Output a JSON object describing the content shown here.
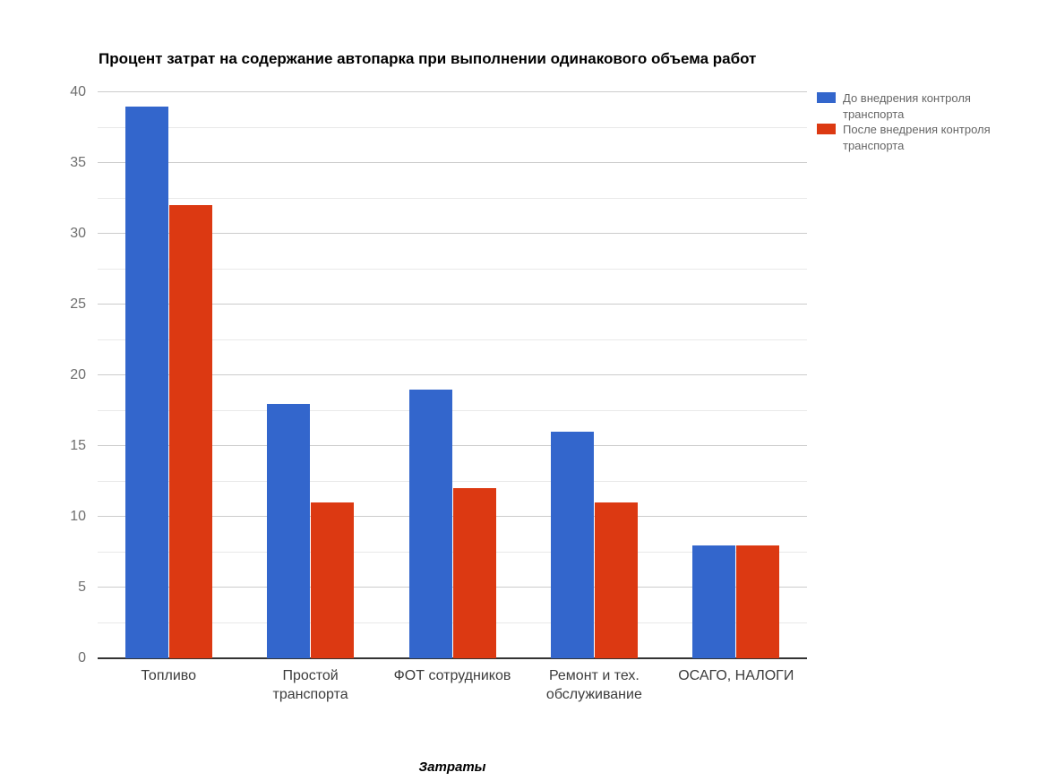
{
  "chart_data": {
    "type": "bar",
    "title": "Процент затрат на содержание автопарка при выполнении одинакового объема работ",
    "xlabel": "Затраты",
    "ylabel": "",
    "categories": [
      "Топливо",
      "Простой транспорта",
      "ФОТ сотрудников",
      "Ремонт и тех. обслуживание",
      "ОСАГО, НАЛОГИ"
    ],
    "category_label_lines": [
      [
        "Топливо"
      ],
      [
        "Простой",
        "транспорта"
      ],
      [
        "ФОТ сотрудников"
      ],
      [
        "Ремонт и тех.",
        "обслуживание"
      ],
      [
        "ОСАГО, НАЛОГИ"
      ]
    ],
    "series": [
      {
        "name": "До внедрения контроля транспорта",
        "name_lines": [
          "До внедрения контроля",
          "транспорта"
        ],
        "color": "#3366cc",
        "values": [
          39,
          18,
          19,
          16,
          8
        ]
      },
      {
        "name": "После внедрения контроля транспорта",
        "name_lines": [
          "После внедрения контроля",
          "транспорта"
        ],
        "color": "#dc3912",
        "values": [
          32,
          11,
          12,
          11,
          8
        ]
      }
    ],
    "ylim": [
      0,
      40
    ],
    "yticks": [
      0,
      5,
      10,
      15,
      20,
      25,
      30,
      35,
      40
    ],
    "minor_tick_interval": 2.5,
    "grid": true,
    "legend_position": "right",
    "gridline_color": "#cccccc",
    "minor_gridline_color": "#e9e9e9",
    "baseline_color": "#333333",
    "background_color": "#ffffff"
  }
}
